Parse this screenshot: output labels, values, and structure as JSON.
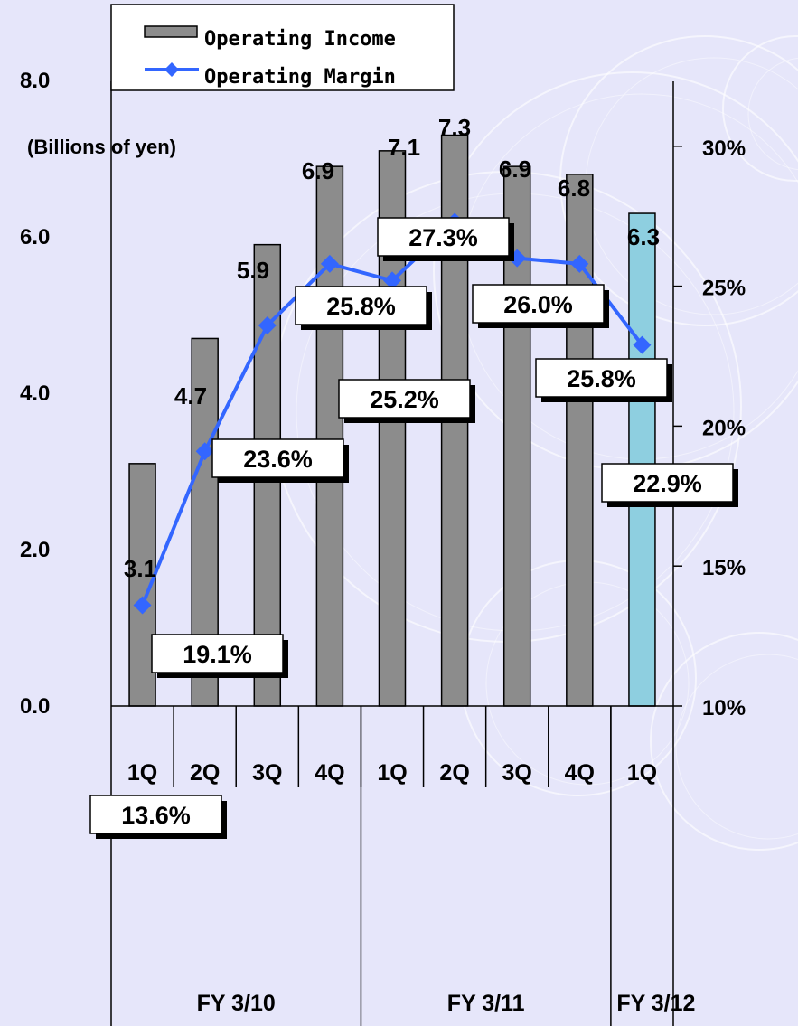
{
  "chart_data": {
    "type": "bar",
    "ylabel": "(Billions of yen)",
    "ylim": [
      0,
      8
    ],
    "y_ticks": [
      "0.0",
      "2.0",
      "4.0",
      "6.0",
      "8.0"
    ],
    "y2lim": [
      10,
      35
    ],
    "y2_ticks": [
      "10%",
      "15%",
      "20%",
      "25%",
      "30%"
    ],
    "categories": [
      "1Q",
      "2Q",
      "3Q",
      "4Q",
      "1Q",
      "2Q",
      "3Q",
      "4Q",
      "1Q"
    ],
    "groups": [
      {
        "label": "FY 3/10",
        "count": 4
      },
      {
        "label": "FY 3/11",
        "count": 4
      },
      {
        "label": "FY 3/12",
        "count": 1
      }
    ],
    "legend": {
      "position": "top-left",
      "items": [
        {
          "name": "Operating Income",
          "symbol": "bar"
        },
        {
          "name": "Operating Margin",
          "symbol": "line-diamond"
        }
      ]
    },
    "series": [
      {
        "name": "Operating Income",
        "kind": "bar",
        "axis": "left",
        "values": [
          3.1,
          4.7,
          5.9,
          6.9,
          7.1,
          7.3,
          6.9,
          6.8,
          6.3
        ],
        "labels": [
          "3.1",
          "4.7",
          "5.9",
          "6.9",
          "7.1",
          "7.3",
          "6.9",
          "6.8",
          "6.3"
        ],
        "color": "#8c8c8c",
        "highlight_color": "#8ecfe0",
        "highlight_index": 8
      },
      {
        "name": "Operating Margin",
        "kind": "line",
        "axis": "right",
        "values": [
          13.6,
          19.1,
          23.6,
          25.8,
          25.2,
          27.3,
          26.0,
          25.8,
          22.9
        ],
        "labels": [
          "13.6%",
          "19.1%",
          "23.6%",
          "25.8%",
          "25.2%",
          "27.3%",
          "26.0%",
          "25.8%",
          "22.9%"
        ],
        "color": "#3366ff"
      }
    ],
    "grid": false
  }
}
